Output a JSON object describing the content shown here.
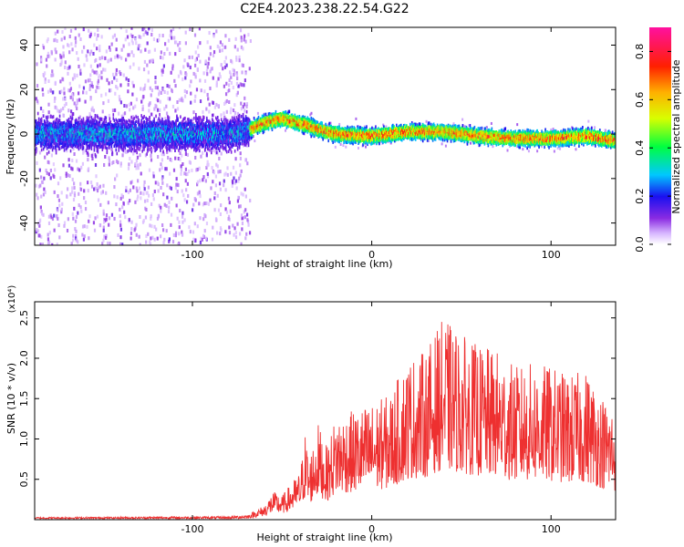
{
  "figure": {
    "title": "C2E4.2023.238.22.54.G22"
  },
  "chart_data": [
    {
      "type": "heatmap",
      "xlabel": "Height of straight line (km)",
      "ylabel": "Frequency (Hz)",
      "xlim": [
        -188,
        136
      ],
      "ylim": [
        -50,
        48
      ],
      "xticks": [
        -100,
        0,
        100
      ],
      "yticks": [
        -40,
        -20,
        0,
        20,
        40
      ],
      "colorbar": {
        "label": "Normalized spectral amplitude",
        "range": [
          0,
          0.9
        ],
        "ticks": [
          0.0,
          0.2,
          0.4,
          0.6,
          0.8
        ],
        "colormap": "rainbow (white-purple-blue-cyan-green-yellow-red-magenta)"
      },
      "trace": {
        "description_points_x": [
          -188,
          -160,
          -130,
          -100,
          -80,
          -68,
          -60,
          -50,
          -42,
          -36,
          -30,
          -20,
          0,
          20,
          40,
          60,
          80,
          100,
          120,
          136
        ],
        "description_points_freq": [
          0,
          0,
          0,
          0,
          0,
          2,
          5,
          7,
          5,
          4,
          2,
          0,
          -1,
          1,
          1,
          -1,
          -2,
          -2,
          -1,
          -3
        ]
      }
    },
    {
      "type": "line",
      "xlabel": "Height of straight line (km)",
      "ylabel": "SNR (10 * v/v)",
      "y_multiplier_label": "(x10⁴)",
      "xlim": [
        -188,
        136
      ],
      "ylim": [
        0,
        2.7
      ],
      "xticks": [
        -100,
        0,
        100
      ],
      "yticks": [
        0.5,
        1.0,
        1.5,
        2.0,
        2.5
      ],
      "series": [
        {
          "color": "#ee3030",
          "envelope_x": [
            -188,
            -80,
            -70,
            -60,
            -55,
            -50,
            -45,
            -40,
            -37,
            -35,
            -30,
            -25,
            -20,
            -10,
            0,
            10,
            20,
            30,
            40,
            50,
            60,
            70,
            80,
            90,
            100,
            110,
            120,
            130,
            136
          ],
          "envelope_y": [
            0.02,
            0.03,
            0.05,
            0.18,
            0.35,
            0.3,
            0.45,
            0.6,
            1.1,
            0.75,
            1.2,
            0.9,
            1.3,
            1.35,
            1.45,
            1.55,
            2.0,
            2.1,
            2.5,
            2.3,
            2.15,
            2.1,
            1.9,
            1.95,
            1.9,
            1.8,
            1.85,
            1.5,
            1.4
          ]
        }
      ]
    }
  ]
}
